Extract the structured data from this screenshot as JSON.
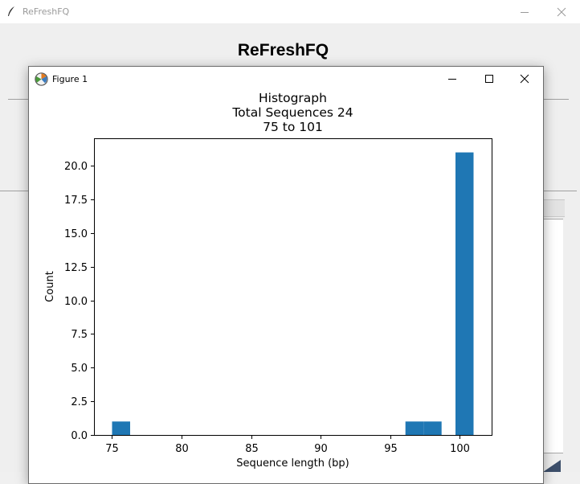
{
  "main_window": {
    "title": "ReFreshFQ",
    "heading": "ReFreshFQ"
  },
  "figure_window": {
    "title": "Figure 1"
  },
  "colors": {
    "bar": "#1f77b4"
  },
  "chart_data": {
    "type": "bar",
    "title": "Histograph\nTotal Sequences 24\n 75 to 101",
    "title_lines": [
      "Histograph",
      "Total Sequences 24",
      " 75 to 101"
    ],
    "xlabel": "Sequence length (bp)",
    "ylabel": "Count",
    "xlim": [
      73.7,
      102.3
    ],
    "ylim": [
      0,
      22.05
    ],
    "xticks": [
      75,
      80,
      85,
      90,
      95,
      100
    ],
    "xtick_labels": [
      "75",
      "80",
      "85",
      "90",
      "95",
      "100"
    ],
    "yticks": [
      0,
      2.5,
      5,
      7.5,
      10,
      12.5,
      15,
      17.5,
      20
    ],
    "ytick_labels": [
      "0.0",
      "2.5",
      "5.0",
      "7.5",
      "10.0",
      "12.5",
      "15.0",
      "17.5",
      "20.0"
    ],
    "bins": [
      {
        "x0": 75.0,
        "x1": 76.3,
        "count": 1
      },
      {
        "x0": 96.1,
        "x1": 97.4,
        "count": 1
      },
      {
        "x0": 97.4,
        "x1": 98.7,
        "count": 1
      },
      {
        "x0": 99.7,
        "x1": 101.0,
        "count": 21
      }
    ]
  }
}
